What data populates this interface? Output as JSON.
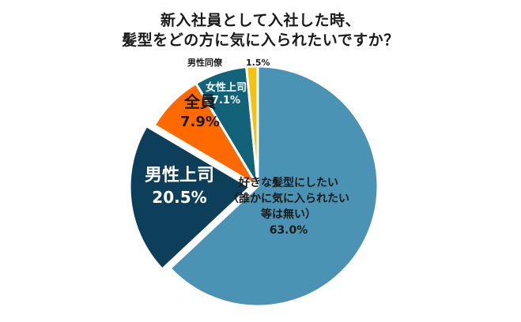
{
  "chart_data": {
    "type": "pie",
    "title_lines": [
      "新入社員として入社した時、",
      "髪型をどの方に気に入られたいですか？"
    ],
    "slices": [
      {
        "label_lines": [
          "好きな髪型にしたい",
          "（誰かに気に入られたい",
          "等は無い）"
        ],
        "value_text": "63.0%",
        "value": 63.0,
        "color": "#4a93b4",
        "text_color": "#1a1a1a"
      },
      {
        "label_lines": [
          "男性上司"
        ],
        "value_text": "20.5%",
        "value": 20.5,
        "color": "#0d3f5a",
        "text_color": "#ffffff",
        "exploded": true
      },
      {
        "label_lines": [
          "全員"
        ],
        "value_text": "7.9%",
        "value": 7.9,
        "color": "#ff6a00",
        "text_color": "#1a1a1a"
      },
      {
        "label_lines": [
          "女性上司"
        ],
        "value_text": "7.1%",
        "value": 7.1,
        "color": "#12627a",
        "text_color": "#ffffff"
      },
      {
        "label_lines": [
          "男性同僚"
        ],
        "value_text": "1.5%",
        "value": 1.5,
        "color": "#f2c313",
        "text_color": "#1a1a1a"
      }
    ]
  }
}
